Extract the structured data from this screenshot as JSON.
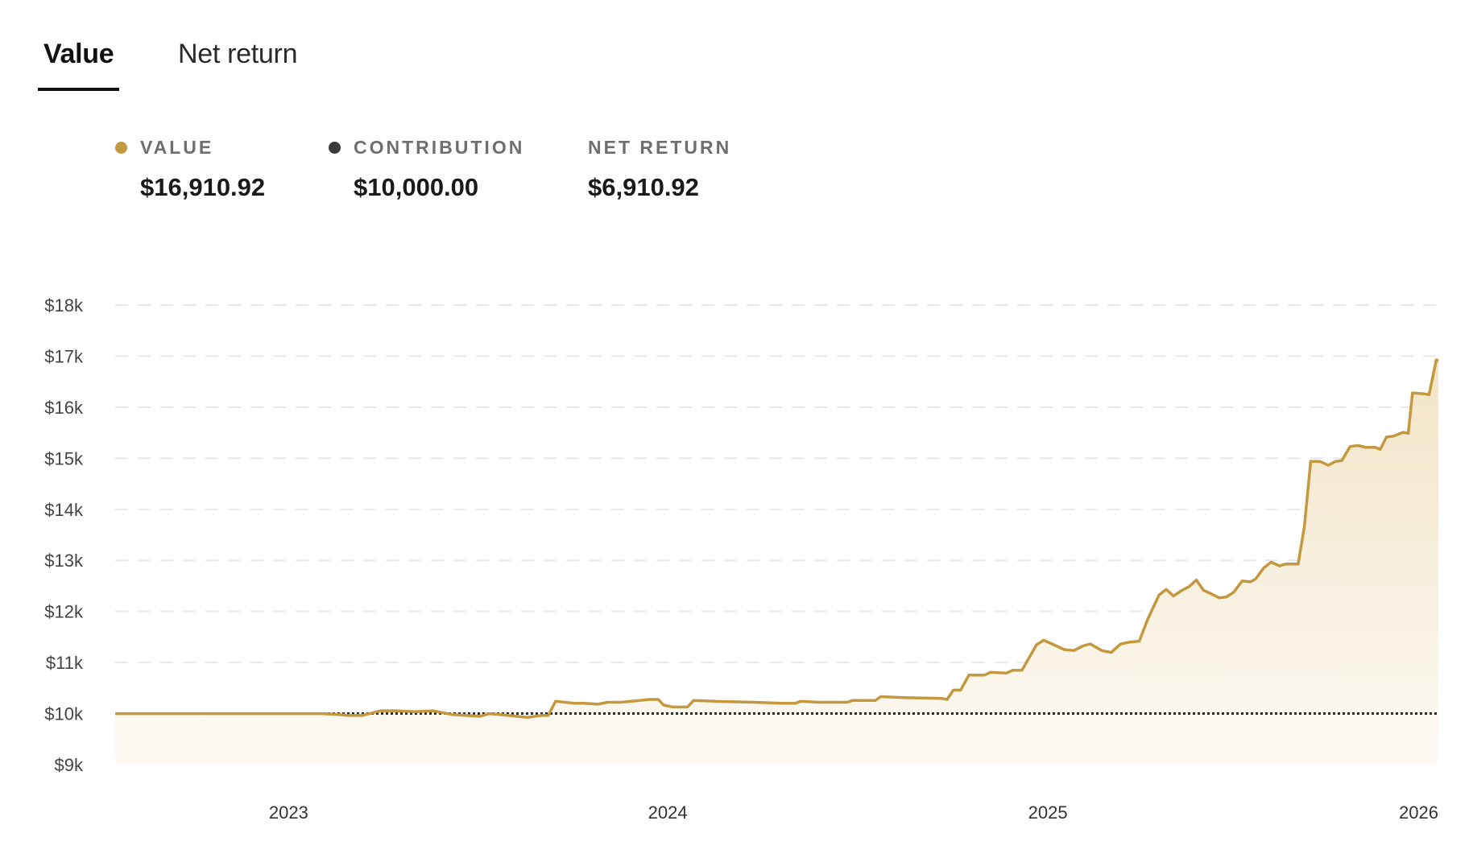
{
  "tabs": [
    {
      "label": "Value",
      "active": true
    },
    {
      "label": "Net return",
      "active": false
    }
  ],
  "legend": [
    {
      "label": "VALUE",
      "value": "$16,910.92",
      "dot_color": "#c4983f"
    },
    {
      "label": "CONTRIBUTION",
      "value": "$10,000.00",
      "dot_color": "#3a3a3a"
    },
    {
      "label": "NET RETURN",
      "value": "$6,910.92"
    }
  ],
  "colors": {
    "value_line": "#c4983f",
    "contribution_line": "#2b2b2b",
    "area_top": "#f2e4c6",
    "area_bottom": "#fdfaf4",
    "grid": "#e8e8e8"
  },
  "chart_data": {
    "type": "area",
    "title": "",
    "xlabel": "",
    "ylabel": "",
    "x_range": [
      "2022-07-18",
      "2026-01-12"
    ],
    "ylim": [
      9000,
      18000
    ],
    "y_ticks": [
      {
        "value": 18000,
        "label": "$18k"
      },
      {
        "value": 17000,
        "label": "$17k"
      },
      {
        "value": 16000,
        "label": "$16k"
      },
      {
        "value": 15000,
        "label": "$15k"
      },
      {
        "value": 14000,
        "label": "$14k"
      },
      {
        "value": 13000,
        "label": "$13k"
      },
      {
        "value": 12000,
        "label": "$12k"
      },
      {
        "value": 11000,
        "label": "$11k"
      },
      {
        "value": 10000,
        "label": "$10k"
      },
      {
        "value": 9000,
        "label": "$9k"
      }
    ],
    "x_ticks": [
      {
        "date": "2023-01-01",
        "label": "2023"
      },
      {
        "date": "2024-01-01",
        "label": "2024"
      },
      {
        "date": "2025-01-01",
        "label": "2025"
      },
      {
        "date": "2026-01-01",
        "label": "2026"
      }
    ],
    "grid": "horizontal-dashed",
    "series": [
      {
        "key": "value",
        "style": "solid-with-area",
        "points": [
          [
            "2022-07-18",
            10000
          ],
          [
            "2023-02-02",
            10000
          ],
          [
            "2023-02-18",
            9980
          ],
          [
            "2023-02-27",
            9963
          ],
          [
            "2023-03-13",
            9963
          ],
          [
            "2023-03-27",
            10037
          ],
          [
            "2023-03-31",
            10055
          ],
          [
            "2023-04-14",
            10055
          ],
          [
            "2023-05-02",
            10037
          ],
          [
            "2023-05-20",
            10055
          ],
          [
            "2023-05-29",
            10020
          ],
          [
            "2023-06-07",
            9982
          ],
          [
            "2023-06-21",
            9963
          ],
          [
            "2023-07-04",
            9945
          ],
          [
            "2023-07-13",
            10000
          ],
          [
            "2023-08-01",
            9963
          ],
          [
            "2023-08-19",
            9926
          ],
          [
            "2023-09-01",
            9963
          ],
          [
            "2023-09-08",
            9963
          ],
          [
            "2023-09-15",
            10240
          ],
          [
            "2023-10-03",
            10203
          ],
          [
            "2023-10-12",
            10203
          ],
          [
            "2023-10-26",
            10184
          ],
          [
            "2023-11-04",
            10221
          ],
          [
            "2023-11-17",
            10221
          ],
          [
            "2023-12-05",
            10258
          ],
          [
            "2023-12-14",
            10276
          ],
          [
            "2023-12-23",
            10276
          ],
          [
            "2023-12-28",
            10166
          ],
          [
            "2024-01-06",
            10129
          ],
          [
            "2024-01-20",
            10129
          ],
          [
            "2024-01-26",
            10258
          ],
          [
            "2024-02-16",
            10240
          ],
          [
            "2024-03-24",
            10221
          ],
          [
            "2024-04-20",
            10203
          ],
          [
            "2024-05-03",
            10203
          ],
          [
            "2024-05-08",
            10240
          ],
          [
            "2024-05-26",
            10221
          ],
          [
            "2024-06-22",
            10221
          ],
          [
            "2024-06-27",
            10258
          ],
          [
            "2024-07-19",
            10258
          ],
          [
            "2024-07-24",
            10332
          ],
          [
            "2024-08-16",
            10313
          ],
          [
            "2024-09-21",
            10295
          ],
          [
            "2024-09-26",
            10276
          ],
          [
            "2024-10-02",
            10460
          ],
          [
            "2024-10-09",
            10460
          ],
          [
            "2024-10-17",
            10755
          ],
          [
            "2024-11-01",
            10755
          ],
          [
            "2024-11-07",
            10810
          ],
          [
            "2024-11-22",
            10792
          ],
          [
            "2024-11-28",
            10847
          ],
          [
            "2024-12-07",
            10847
          ],
          [
            "2024-12-21",
            11345
          ],
          [
            "2024-12-28",
            11437
          ],
          [
            "2025-01-03",
            11382
          ],
          [
            "2025-01-17",
            11253
          ],
          [
            "2025-01-26",
            11234
          ],
          [
            "2025-02-04",
            11326
          ],
          [
            "2025-02-11",
            11363
          ],
          [
            "2025-02-22",
            11234
          ],
          [
            "2025-03-03",
            11197
          ],
          [
            "2025-03-12",
            11363
          ],
          [
            "2025-03-21",
            11400
          ],
          [
            "2025-03-30",
            11418
          ],
          [
            "2025-04-07",
            11842
          ],
          [
            "2025-04-18",
            12321
          ],
          [
            "2025-04-25",
            12431
          ],
          [
            "2025-05-02",
            12303
          ],
          [
            "2025-05-10",
            12413
          ],
          [
            "2025-05-17",
            12487
          ],
          [
            "2025-05-24",
            12616
          ],
          [
            "2025-05-31",
            12413
          ],
          [
            "2025-06-06",
            12358
          ],
          [
            "2025-06-15",
            12266
          ],
          [
            "2025-06-22",
            12284
          ],
          [
            "2025-06-29",
            12376
          ],
          [
            "2025-07-07",
            12597
          ],
          [
            "2025-07-15",
            12579
          ],
          [
            "2025-07-20",
            12634
          ],
          [
            "2025-07-28",
            12855
          ],
          [
            "2025-08-04",
            12966
          ],
          [
            "2025-08-12",
            12892
          ],
          [
            "2025-08-18",
            12929
          ],
          [
            "2025-08-30",
            12929
          ],
          [
            "2025-09-05",
            13666
          ],
          [
            "2025-09-11",
            14937
          ],
          [
            "2025-09-20",
            14937
          ],
          [
            "2025-09-28",
            14863
          ],
          [
            "2025-10-05",
            14937
          ],
          [
            "2025-10-11",
            14955
          ],
          [
            "2025-10-19",
            15231
          ],
          [
            "2025-10-27",
            15250
          ],
          [
            "2025-11-03",
            15213
          ],
          [
            "2025-11-12",
            15213
          ],
          [
            "2025-11-17",
            15176
          ],
          [
            "2025-11-23",
            15415
          ],
          [
            "2025-11-30",
            15434
          ],
          [
            "2025-12-09",
            15508
          ],
          [
            "2025-12-14",
            15489
          ],
          [
            "2025-12-18",
            16281
          ],
          [
            "2025-12-29",
            16263
          ],
          [
            "2026-01-03",
            16245
          ],
          [
            "2026-01-10",
            16926
          ],
          [
            "2026-01-12",
            16910
          ]
        ]
      },
      {
        "key": "contribution",
        "style": "dotted",
        "points": [
          [
            "2022-07-18",
            10000
          ],
          [
            "2026-01-12",
            10000
          ]
        ]
      }
    ]
  }
}
